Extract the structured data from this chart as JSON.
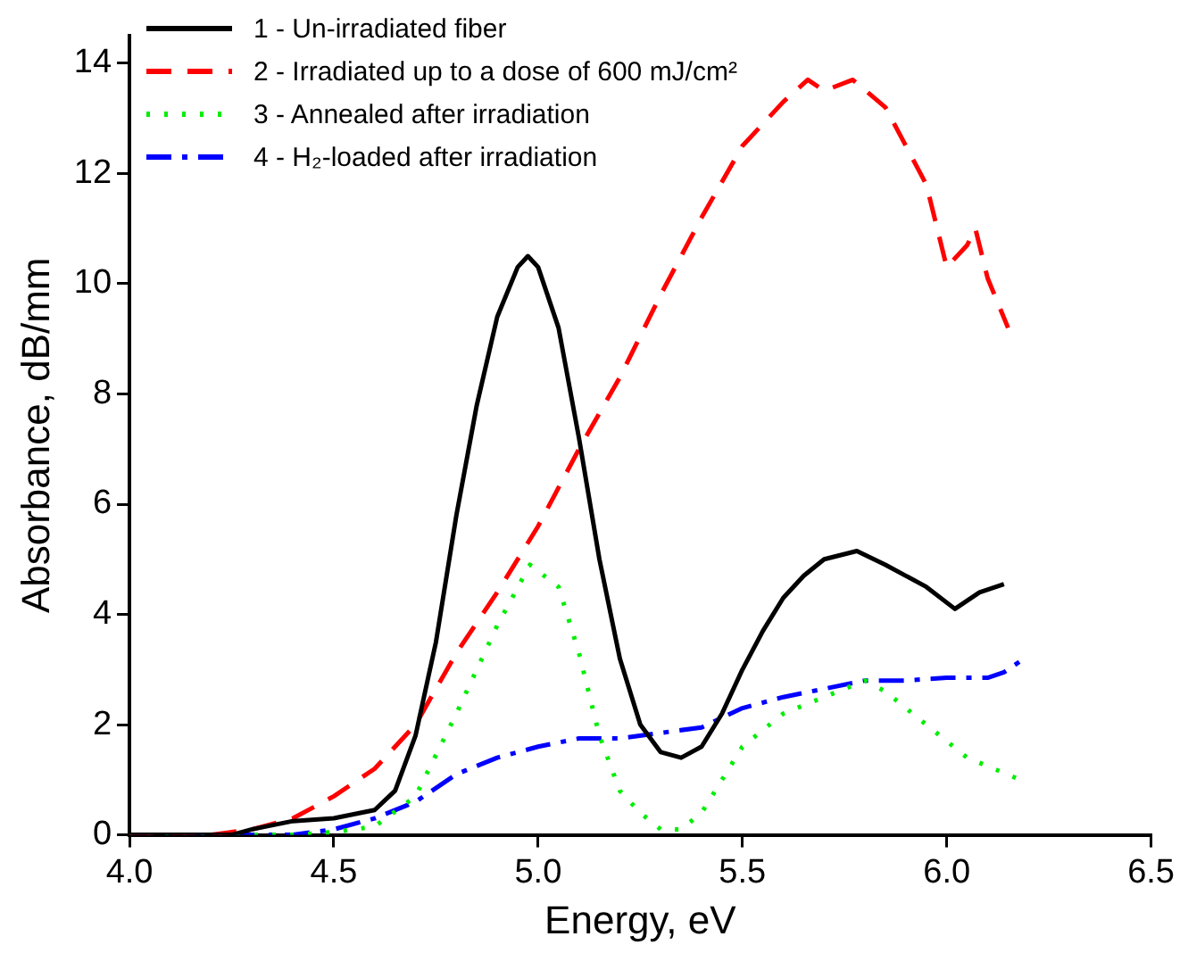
{
  "chart_data": {
    "type": "line",
    "xlabel": "Energy, eV",
    "ylabel": "Absorbance, dB/mm",
    "xlim": [
      4.0,
      6.5
    ],
    "xticks": [
      {
        "value": 4.0,
        "label": "4.0"
      },
      {
        "value": 4.5,
        "label": "4.5"
      },
      {
        "value": 5.0,
        "label": "5.0"
      },
      {
        "value": 5.5,
        "label": "5.5"
      },
      {
        "value": 6.0,
        "label": "6.0"
      },
      {
        "value": 6.5,
        "label": "6.5"
      }
    ],
    "ylim": [
      0,
      14.5
    ],
    "yticks": [
      0,
      2,
      4,
      6,
      8,
      10,
      12,
      14
    ],
    "grid": false,
    "legend": "top left",
    "marker": "none",
    "series": [
      {
        "name": "1 - Un-irradiated fiber",
        "color": "#000000",
        "line_style": "solid",
        "x": [
          4.0,
          4.25,
          4.3,
          4.4,
          4.5,
          4.6,
          4.65,
          4.7,
          4.75,
          4.8,
          4.85,
          4.9,
          4.95,
          4.975,
          5.0,
          5.05,
          5.1,
          5.15,
          5.2,
          5.25,
          5.3,
          5.35,
          5.4,
          5.45,
          5.5,
          5.55,
          5.6,
          5.65,
          5.7,
          5.78,
          5.85,
          5.95,
          6.02,
          6.08,
          6.14
        ],
        "values": [
          0,
          0,
          0.1,
          0.25,
          0.3,
          0.45,
          0.8,
          1.8,
          3.5,
          5.8,
          7.8,
          9.4,
          10.3,
          10.5,
          10.3,
          9.2,
          7.2,
          5.0,
          3.2,
          2.0,
          1.5,
          1.4,
          1.6,
          2.2,
          3.0,
          3.7,
          4.3,
          4.7,
          5.0,
          5.15,
          4.9,
          4.5,
          4.1,
          4.4,
          4.55
        ]
      },
      {
        "name": "2 - Irradiated up to a dose of 600 mJ/cm²",
        "color": "#ff0000",
        "line_style": "dashed",
        "x": [
          4.0,
          4.2,
          4.3,
          4.4,
          4.5,
          4.6,
          4.7,
          4.8,
          4.9,
          5.0,
          5.1,
          5.2,
          5.3,
          5.4,
          5.5,
          5.6,
          5.66,
          5.7,
          5.77,
          5.85,
          5.95,
          6.0,
          6.05,
          6.07,
          6.1,
          6.15
        ],
        "values": [
          0,
          0,
          0.1,
          0.3,
          0.7,
          1.2,
          2.0,
          3.3,
          4.4,
          5.6,
          7.0,
          8.3,
          9.8,
          11.2,
          12.5,
          13.3,
          13.7,
          13.5,
          13.7,
          13.2,
          11.8,
          10.3,
          10.7,
          11.0,
          10.1,
          9.2
        ]
      },
      {
        "name": "3 - Annealed after irradiation",
        "color": "#00ee00",
        "line_style": "dotted",
        "x": [
          4.0,
          4.4,
          4.5,
          4.6,
          4.7,
          4.8,
          4.9,
          4.98,
          5.05,
          5.1,
          5.15,
          5.2,
          5.25,
          5.3,
          5.35,
          5.4,
          5.45,
          5.5,
          5.6,
          5.7,
          5.8,
          5.85,
          5.95,
          6.05,
          6.18
        ],
        "values": [
          0,
          0,
          0.05,
          0.15,
          0.7,
          2.2,
          3.8,
          4.9,
          4.5,
          3.3,
          1.8,
          0.8,
          0.4,
          0.1,
          0.1,
          0.4,
          1.0,
          1.6,
          2.2,
          2.5,
          2.8,
          2.6,
          2.0,
          1.4,
          1.0
        ]
      },
      {
        "name": "4 - H₂-loaded after irradiation",
        "color": "#0000ff",
        "line_style": "dashdot",
        "x": [
          4.0,
          4.4,
          4.5,
          4.6,
          4.7,
          4.8,
          4.9,
          5.0,
          5.1,
          5.2,
          5.3,
          5.4,
          5.5,
          5.6,
          5.7,
          5.8,
          5.9,
          6.0,
          6.1,
          6.14,
          6.19
        ],
        "values": [
          0,
          0,
          0.1,
          0.3,
          0.6,
          1.1,
          1.4,
          1.6,
          1.75,
          1.75,
          1.85,
          1.95,
          2.3,
          2.5,
          2.65,
          2.8,
          2.8,
          2.85,
          2.85,
          2.95,
          3.2
        ]
      }
    ]
  }
}
